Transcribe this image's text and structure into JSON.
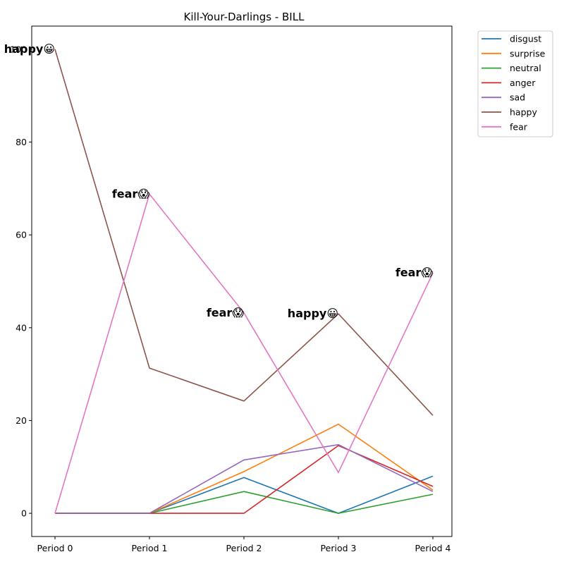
{
  "chart_data": {
    "type": "line",
    "title": "Kill-Your-Darlings - BILL",
    "xlabel": "",
    "ylabel": "",
    "categories": [
      "Period 0",
      "Period 1",
      "Period 2",
      "Period 3",
      "Period 4"
    ],
    "ylim": [
      -5,
      105
    ],
    "yticks": [
      0,
      20,
      40,
      60,
      80,
      100
    ],
    "grid": false,
    "legend_position": "outside-top-right",
    "series": [
      {
        "name": "disgust",
        "color": "#1f77b4",
        "values": [
          0,
          0,
          7.7,
          0,
          8.0
        ]
      },
      {
        "name": "surprise",
        "color": "#ff7f0e",
        "values": [
          0,
          0,
          9.0,
          19.2,
          5.0
        ]
      },
      {
        "name": "neutral",
        "color": "#2ca02c",
        "values": [
          0,
          0,
          4.7,
          0,
          4.1
        ]
      },
      {
        "name": "anger",
        "color": "#d62728",
        "values": [
          0,
          0,
          0,
          14.6,
          5.8
        ]
      },
      {
        "name": "sad",
        "color": "#9467bd",
        "values": [
          0,
          0,
          11.5,
          14.8,
          4.7
        ]
      },
      {
        "name": "happy",
        "color": "#8c564b",
        "values": [
          100,
          31.3,
          24.2,
          43.0,
          21.1
        ]
      },
      {
        "name": "fear",
        "color": "#e377c2",
        "values": [
          0,
          68.8,
          43.2,
          8.8,
          51.8
        ]
      }
    ],
    "annotations": [
      {
        "category": "Period 0",
        "y": 100,
        "text": "happy😀"
      },
      {
        "category": "Period 1",
        "y": 68.8,
        "text": "fear😱"
      },
      {
        "category": "Period 2",
        "y": 43.2,
        "text": "fear😱"
      },
      {
        "category": "Period 3",
        "y": 43.0,
        "text": "happy😀"
      },
      {
        "category": "Period 4",
        "y": 51.8,
        "text": "fear😱"
      }
    ]
  }
}
